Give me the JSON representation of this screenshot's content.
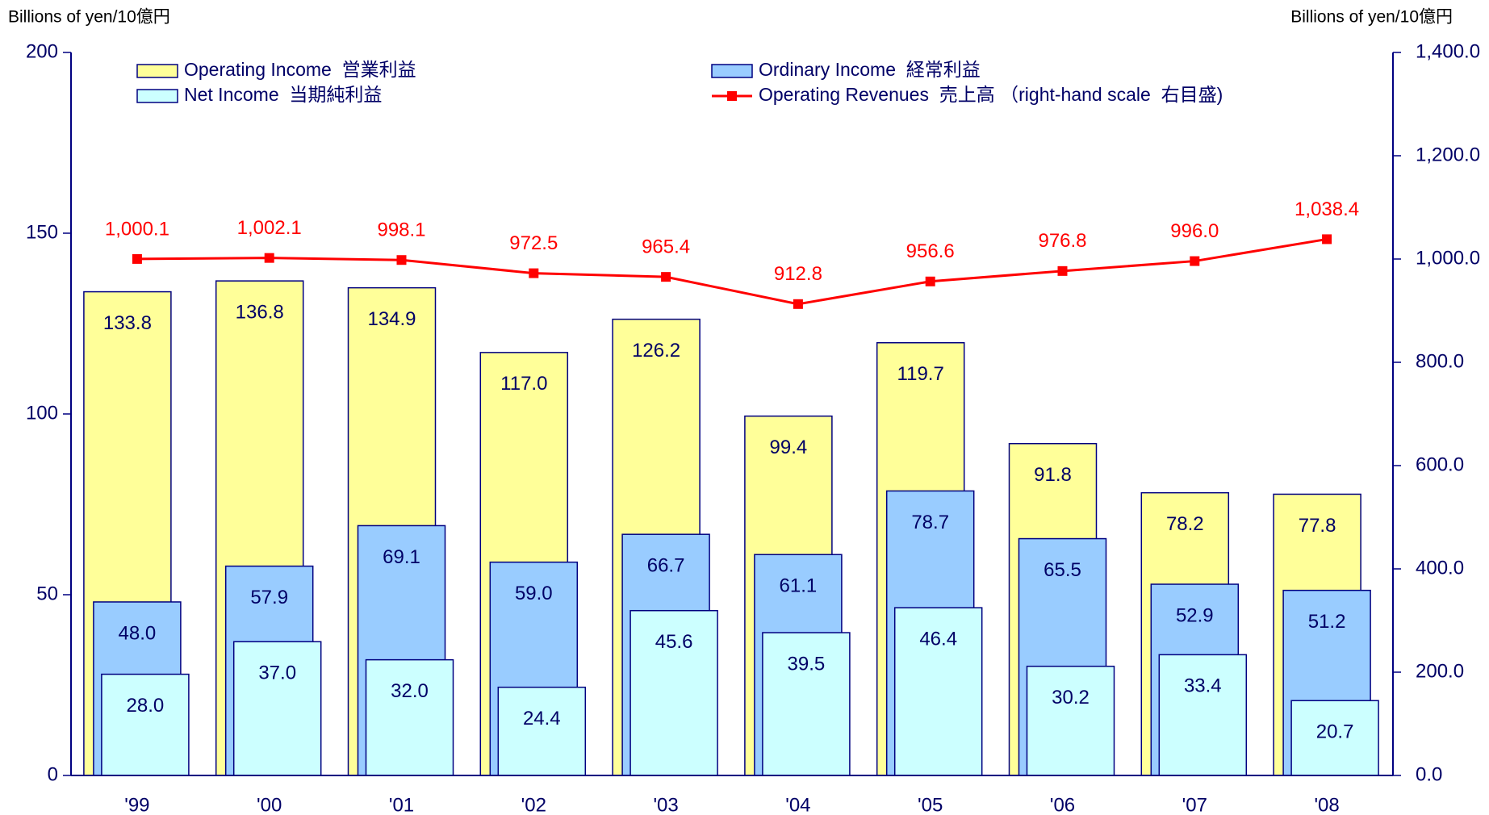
{
  "chart_data": {
    "type": "bar_line",
    "y_label": "Billions of yen/10億円",
    "y2_label": "Billions of yen/10億円",
    "categories": [
      "'99",
      "'00",
      "'01",
      "'02",
      "'03",
      "'04",
      "'05",
      "'06",
      "'07",
      "'08"
    ],
    "series": [
      {
        "name": "Operating Income  営業利益",
        "type": "bar",
        "color": "#ffff99",
        "values": [
          133.8,
          136.8,
          134.9,
          117.0,
          126.2,
          99.4,
          119.7,
          91.8,
          78.2,
          77.8
        ],
        "value_labels": [
          "133.8",
          "136.8",
          "134.9",
          "117.0",
          "126.2",
          "99.4",
          "119.7",
          "91.8",
          "78.2",
          "77.8"
        ]
      },
      {
        "name": "Ordinary Income  経常利益",
        "type": "bar",
        "color": "#99ccff",
        "values": [
          48.0,
          57.9,
          69.1,
          59.0,
          66.7,
          61.1,
          78.7,
          65.5,
          52.9,
          51.2
        ],
        "value_labels": [
          "48.0",
          "57.9",
          "69.1",
          "59.0",
          "66.7",
          "61.1",
          "78.7",
          "65.5",
          "52.9",
          "51.2"
        ]
      },
      {
        "name": "Net Income  当期純利益",
        "type": "bar",
        "color": "#ccffff",
        "values": [
          28.0,
          37.0,
          32.0,
          24.4,
          45.6,
          39.5,
          46.4,
          30.2,
          33.4,
          20.7
        ],
        "value_labels": [
          "28.0",
          "37.0",
          "32.0",
          "24.4",
          "45.6",
          "39.5",
          "46.4",
          "30.2",
          "33.4",
          "20.7"
        ]
      },
      {
        "name": "Operating Revenues  売上高 （right-hand scale  右目盛)",
        "type": "line",
        "axis": "y2",
        "color": "#ff0000",
        "values": [
          1000.1,
          1002.1,
          998.1,
          972.5,
          965.4,
          912.8,
          956.6,
          976.8,
          996.0,
          1038.4
        ],
        "value_labels": [
          "1,000.1",
          "1,002.1",
          "998.1",
          "972.5",
          "965.4",
          "912.8",
          "956.6",
          "976.8",
          "996.0",
          "1,038.4"
        ]
      }
    ],
    "ylim": [
      0,
      200
    ],
    "yticks": [
      0,
      50,
      100,
      150,
      200
    ],
    "y2lim": [
      0,
      1400
    ],
    "y2ticks": [
      {
        "value": 0,
        "label": "0.0"
      },
      {
        "value": 200,
        "label": "200.0"
      },
      {
        "value": 400,
        "label": "400.0"
      },
      {
        "value": 600,
        "label": "600.0"
      },
      {
        "value": 800,
        "label": "800.0"
      },
      {
        "value": 1000,
        "label": "1,000.0"
      },
      {
        "value": 1200,
        "label": "1,200.0"
      },
      {
        "value": 1400,
        "label": "1,400.0"
      }
    ]
  }
}
